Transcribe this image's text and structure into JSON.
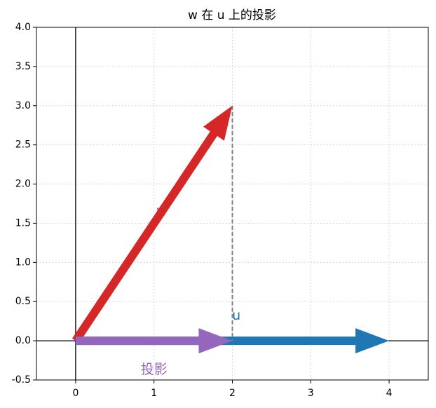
{
  "chart_data": {
    "type": "quiver",
    "title": "w 在 u 上的投影",
    "vectors": [
      {
        "name": "w",
        "color": "#d62728",
        "x": [
          0,
          2
        ],
        "y": [
          0,
          3
        ]
      },
      {
        "name": "u",
        "color": "#1f77b4",
        "x": [
          0,
          4
        ],
        "y": [
          0,
          0
        ]
      },
      {
        "name": "投影",
        "color": "#9467bd",
        "x": [
          0,
          2
        ],
        "y": [
          0,
          0
        ]
      }
    ],
    "xlim": [
      -0.5,
      4.5
    ],
    "ylim": [
      -0.5,
      4.0
    ],
    "xticks": [
      0,
      1,
      2,
      3,
      4
    ],
    "yticks": [
      -0.5,
      {
        "value": 0,
        "label": "0.0"
      },
      0.5,
      {
        "value": 1,
        "label": "1.0"
      },
      1.5,
      {
        "value": 2,
        "label": "2.0"
      },
      2.5,
      {
        "value": 3,
        "label": "3.0"
      },
      3.5,
      {
        "value": 4,
        "label": "4.0"
      }
    ],
    "grid": true
  }
}
